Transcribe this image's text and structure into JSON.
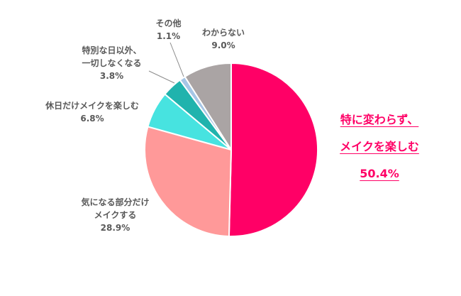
{
  "chart_data": {
    "type": "pie",
    "start_angle_deg": 0,
    "direction": "clockwise",
    "slices": [
      {
        "label_lines": [
          "特に変わらず、",
          "メイクを楽しむ"
        ],
        "value": 50.4,
        "value_label": "50.4%",
        "color": "#ff0066"
      },
      {
        "label_lines": [
          "気になる部分だけ",
          "メイクする"
        ],
        "value": 28.9,
        "value_label": "28.9%",
        "color": "#ff9999"
      },
      {
        "label_lines": [
          "休日だけメイクを楽しむ"
        ],
        "value": 6.8,
        "value_label": "6.8%",
        "color": "#47e3e0"
      },
      {
        "label_lines": [
          "特別な日以外、",
          "一切しなくなる"
        ],
        "value": 3.8,
        "value_label": "3.8%",
        "color": "#20b3ad"
      },
      {
        "label_lines": [
          "その他"
        ],
        "value": 1.1,
        "value_label": "1.1%",
        "color": "#a6c6e6"
      },
      {
        "label_lines": [
          "わからない"
        ],
        "value": 9.0,
        "value_label": "9.0%",
        "color": "#aaa4a4"
      }
    ]
  }
}
